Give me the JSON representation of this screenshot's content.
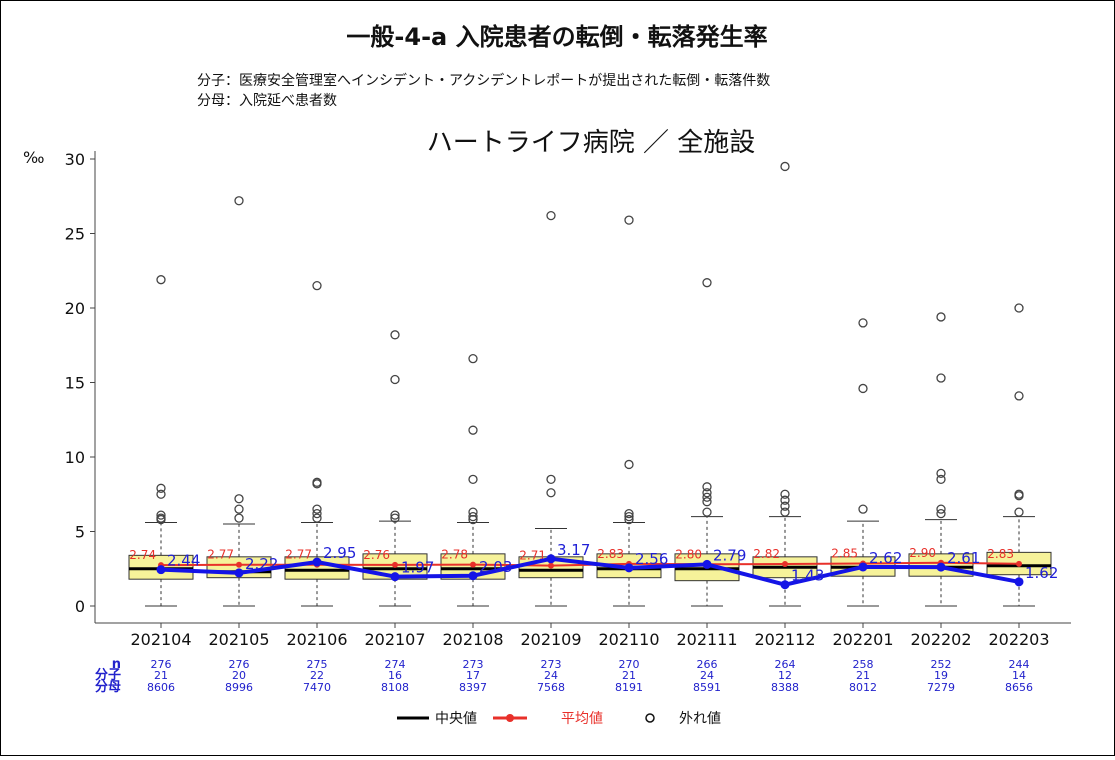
{
  "title": "一般-4-a 入院患者の転倒・転落発生率",
  "numerator_note": "分子：医療安全管理室へインシデント・アクシデントレポートが提出された転倒・転落件数",
  "denominator_note": "分母：入院延べ患者数",
  "subtitle": "ハートライフ病院 ／ 全施設",
  "row_labels": {
    "n": "n",
    "numerator": "分子",
    "denominator": "分母"
  },
  "legend": {
    "median": "中央値",
    "mean": "平均値",
    "outlier": "外れ値"
  },
  "colors": {
    "box_fill": "#f6f29a",
    "mean": "#e8302a",
    "hospital": "#1414e6",
    "counts": "#2222cc"
  },
  "chart_data": {
    "type": "box",
    "ylabel": "‰",
    "ylim": [
      0,
      30
    ],
    "yticks": [
      0,
      5,
      10,
      15,
      20,
      25,
      30
    ],
    "grid": false,
    "legend_position": "bottom",
    "categories": [
      "202104",
      "202105",
      "202106",
      "202107",
      "202108",
      "202109",
      "202110",
      "202111",
      "202112",
      "202201",
      "202202",
      "202203"
    ],
    "boxes": [
      {
        "q1": 1.8,
        "median": 2.5,
        "q3": 3.4,
        "whisker_low": 0,
        "whisker_high": 5.6,
        "outliers": [
          5.8,
          5.9,
          6.1,
          7.5,
          7.9,
          21.9
        ]
      },
      {
        "q1": 1.9,
        "median": 2.3,
        "q3": 3.3,
        "whisker_low": 0,
        "whisker_high": 5.5,
        "outliers": [
          5.9,
          6.5,
          7.2,
          27.2
        ]
      },
      {
        "q1": 1.8,
        "median": 2.4,
        "q3": 3.3,
        "whisker_low": 0,
        "whisker_high": 5.6,
        "outliers": [
          5.9,
          6.2,
          6.5,
          8.2,
          8.3,
          21.5
        ]
      },
      {
        "q1": 1.8,
        "median": 2.5,
        "q3": 3.5,
        "whisker_low": 0,
        "whisker_high": 5.7,
        "outliers": [
          5.9,
          6.1,
          15.2,
          18.2
        ]
      },
      {
        "q1": 1.8,
        "median": 2.5,
        "q3": 3.5,
        "whisker_low": 0,
        "whisker_high": 5.6,
        "outliers": [
          5.8,
          6.0,
          6.3,
          8.5,
          11.8,
          16.6
        ]
      },
      {
        "q1": 1.9,
        "median": 2.4,
        "q3": 3.3,
        "whisker_low": 0,
        "whisker_high": 5.2,
        "outliers": [
          7.6,
          8.5,
          26.2
        ]
      },
      {
        "q1": 1.9,
        "median": 2.5,
        "q3": 3.5,
        "whisker_low": 0,
        "whisker_high": 5.6,
        "outliers": [
          5.8,
          6.0,
          6.2,
          9.5,
          25.9
        ]
      },
      {
        "q1": 1.7,
        "median": 2.5,
        "q3": 3.5,
        "whisker_low": 0,
        "whisker_high": 6.0,
        "outliers": [
          6.3,
          7.0,
          7.3,
          7.6,
          8.0,
          21.7
        ]
      },
      {
        "q1": 1.9,
        "median": 2.6,
        "q3": 3.3,
        "whisker_low": 0,
        "whisker_high": 6.0,
        "outliers": [
          6.3,
          6.7,
          7.1,
          7.5,
          29.5
        ]
      },
      {
        "q1": 2.0,
        "median": 2.6,
        "q3": 3.3,
        "whisker_low": 0,
        "whisker_high": 5.7,
        "outliers": [
          6.5,
          14.6,
          19.0
        ]
      },
      {
        "q1": 2.0,
        "median": 2.6,
        "q3": 3.5,
        "whisker_low": 0,
        "whisker_high": 5.8,
        "outliers": [
          6.2,
          6.5,
          8.5,
          8.9,
          15.3,
          19.4
        ]
      },
      {
        "q1": 2.1,
        "median": 2.7,
        "q3": 3.6,
        "whisker_low": 0,
        "whisker_high": 6.0,
        "outliers": [
          6.3,
          7.4,
          7.5,
          14.1,
          20.0
        ]
      }
    ],
    "mean_series": {
      "name": "平均値",
      "values": [
        2.74,
        2.77,
        2.77,
        2.76,
        2.78,
        2.71,
        2.83,
        2.8,
        2.82,
        2.85,
        2.9,
        2.83
      ],
      "labels": [
        "2.74",
        "2.77",
        "2.77",
        "2.76",
        "2.78",
        "2.71",
        "2.83",
        "2.80",
        "2.82",
        "2.85",
        "2.90",
        "2.83"
      ]
    },
    "hospital_series": {
      "values": [
        2.44,
        2.22,
        2.95,
        1.97,
        2.03,
        3.17,
        2.56,
        2.79,
        1.43,
        2.62,
        2.61,
        1.62
      ],
      "labels": [
        "2.44",
        "2.22",
        "2.95",
        "1.97",
        "2.03",
        "3.17",
        "2.56",
        "2.79",
        "1.43",
        "2.62",
        "2.61",
        "1.62"
      ]
    },
    "counts": {
      "n": [
        "276",
        "276",
        "275",
        "274",
        "273",
        "273",
        "270",
        "266",
        "264",
        "258",
        "252",
        "244"
      ],
      "numerator": [
        "21",
        "20",
        "22",
        "16",
        "17",
        "24",
        "21",
        "24",
        "12",
        "21",
        "19",
        "14"
      ],
      "denominator": [
        "8606",
        "8996",
        "7470",
        "8108",
        "8397",
        "7568",
        "8191",
        "8591",
        "8388",
        "8012",
        "7279",
        "8656"
      ]
    }
  }
}
